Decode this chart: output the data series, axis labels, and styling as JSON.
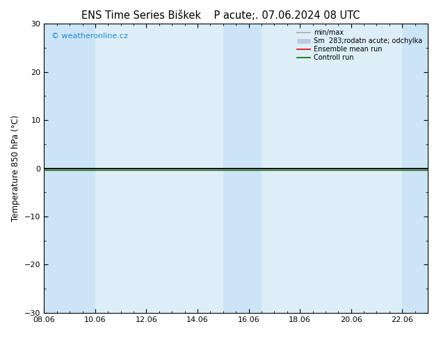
{
  "title_left": "ENS Time Series Biškek",
  "title_right": "P acute;. 07.06.2024 08 UTC",
  "ylabel": "Temperature 850 hPa (°C)",
  "ylim": [
    -30,
    30
  ],
  "yticks": [
    -30,
    -20,
    -10,
    0,
    10,
    20,
    30
  ],
  "xlim": [
    0,
    15
  ],
  "xtick_labels": [
    "08.06",
    "10.06",
    "12.06",
    "14.06",
    "16.06",
    "18.06",
    "20.06",
    "22.06"
  ],
  "xtick_positions": [
    0,
    2,
    4,
    6,
    8,
    10,
    12,
    14
  ],
  "shaded_bands": [
    {
      "x_start": 0,
      "x_end": 2,
      "color": "#cce5f6"
    },
    {
      "x_start": 7,
      "x_end": 8.5,
      "color": "#cce5f6"
    },
    {
      "x_start": 14,
      "x_end": 15,
      "color": "#cce5f6"
    }
  ],
  "zero_line_color": "#000000",
  "green_line_color": "#006600",
  "watermark": "© weatheronline.cz",
  "watermark_color": "#2288cc",
  "background_color": "#ffffff",
  "plot_bg_color": "#ddeef8",
  "title_fontsize": 10.5,
  "label_fontsize": 8.5,
  "tick_fontsize": 8
}
